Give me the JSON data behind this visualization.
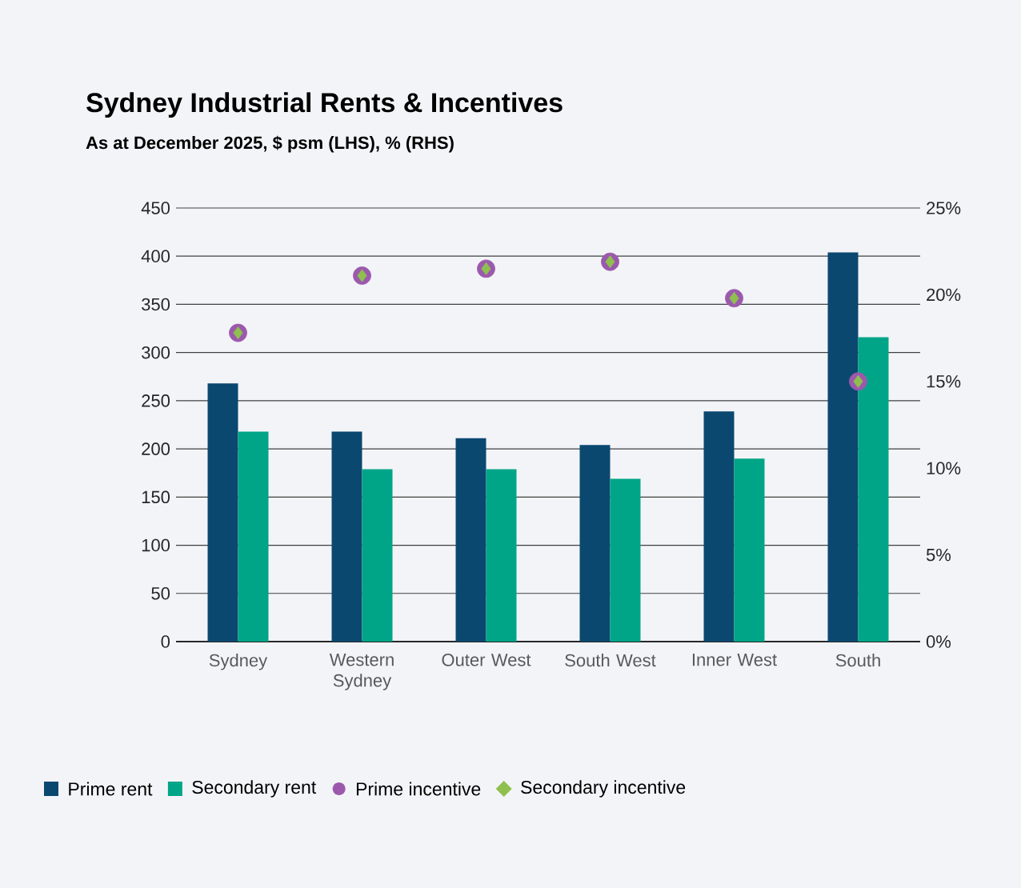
{
  "chart_data": {
    "type": "bar",
    "title": "Sydney Industrial Rents & Incentives",
    "subtitle": "As at December 2025, $ psm (LHS), % (RHS)",
    "categories": [
      "Sydney",
      "Western Sydney",
      "Outer West",
      "South West",
      "Inner West",
      "South"
    ],
    "series": [
      {
        "name": "Prime rent",
        "color": "#0b4870",
        "values": [
          268,
          218,
          211,
          204,
          239,
          404
        ]
      },
      {
        "name": "Secondary rent",
        "color": "#00a587",
        "values": [
          218,
          179,
          179,
          169,
          190,
          316
        ]
      },
      {
        "name": "Prime incentive",
        "type": "scatter",
        "axis": "y2",
        "marker": "circle",
        "color": "#9b59ad",
        "values": [
          17.8,
          21.1,
          21.5,
          21.9,
          19.8,
          15.0
        ]
      },
      {
        "name": "Secondary incentive",
        "type": "scatter",
        "axis": "y2",
        "marker": "diamond",
        "color": "#8fbf4f",
        "values": [
          17.8,
          21.1,
          21.5,
          21.9,
          19.8,
          15.0
        ]
      }
    ],
    "ylim": [
      0,
      450
    ],
    "yticks": [
      0,
      50,
      100,
      150,
      200,
      250,
      300,
      350,
      400,
      450
    ],
    "y2lim": [
      0,
      25
    ],
    "y2ticks": [
      {
        "value": 0,
        "label": "0%"
      },
      {
        "value": 5,
        "label": "5%"
      },
      {
        "value": 10,
        "label": "10%"
      },
      {
        "value": 15,
        "label": "15%"
      },
      {
        "value": 20,
        "label": "20%"
      },
      {
        "value": 25,
        "label": "25%"
      }
    ],
    "grid": "y",
    "legend": "bottom"
  }
}
